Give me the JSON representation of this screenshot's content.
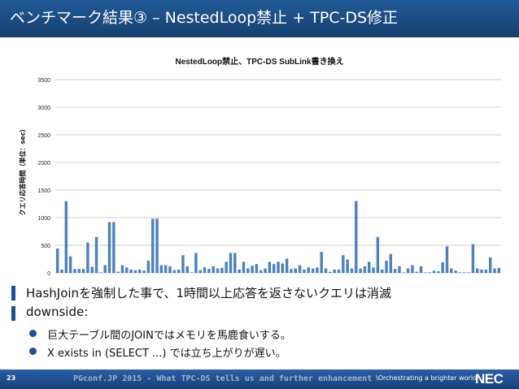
{
  "slide": {
    "title": "ベンチマーク結果③ – NestedLoop禁止 + TPC-DS修正"
  },
  "chart_data": {
    "type": "bar",
    "title": "NestedLoop禁止、TPC-DS SubLink書き換え",
    "ylabel": "クエリ応答時間（単位：sec）",
    "xlabel": "",
    "ylim": [
      0,
      3500
    ],
    "yticks": [
      0,
      500,
      1000,
      1500,
      2000,
      2500,
      3000,
      3500
    ],
    "grid": true,
    "legend": "none",
    "color": "#4f81bd",
    "values": [
      440,
      60,
      1300,
      300,
      70,
      70,
      70,
      550,
      110,
      650,
      10,
      140,
      920,
      920,
      20,
      140,
      100,
      60,
      50,
      60,
      40,
      220,
      980,
      980,
      140,
      140,
      120,
      50,
      60,
      320,
      120,
      10,
      360,
      50,
      100,
      70,
      120,
      80,
      90,
      200,
      360,
      360,
      60,
      200,
      80,
      130,
      160,
      50,
      80,
      200,
      160,
      200,
      170,
      260,
      70,
      80,
      140,
      60,
      100,
      80,
      100,
      380,
      80,
      20,
      60,
      60,
      320,
      240,
      80,
      1300,
      80,
      120,
      200,
      100,
      650,
      60,
      220,
      340,
      70,
      120,
      10,
      80,
      140,
      20,
      120,
      10,
      10,
      40,
      30,
      190,
      480,
      80,
      40,
      10,
      10,
      10,
      520,
      80,
      60,
      60,
      280,
      80,
      90
    ]
  },
  "bullets": [
    {
      "text": "HashJoinを強制した事で、1時間以上応答を返さないクエリは消滅"
    },
    {
      "text": "downside:"
    }
  ],
  "sub_bullets": [
    {
      "text": "巨大テーブル間のJOINではメモリを馬鹿食いする。"
    },
    {
      "text": "X exists in (SELECT ...) では立ち上がりが遅い。"
    }
  ],
  "footer": {
    "page": "23",
    "text": "PGconf.JP 2015 - What TPC-DS tells us and further enhancement",
    "tagline": "\\Orchestrating a brighter world",
    "logo": "NEC"
  }
}
